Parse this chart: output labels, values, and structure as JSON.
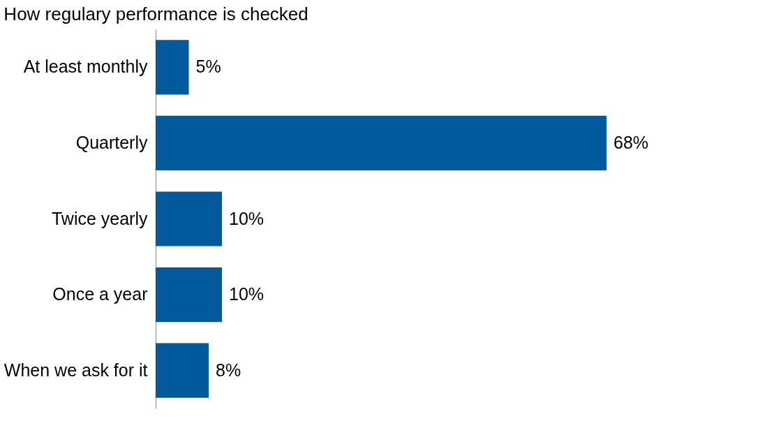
{
  "chart_data": {
    "type": "bar",
    "orientation": "horizontal",
    "title": "How regulary performance is checked",
    "categories": [
      "At least monthly",
      "Quarterly",
      "Twice yearly",
      "Once a year",
      "When we ask for it"
    ],
    "values": [
      5,
      68,
      10,
      10,
      8
    ],
    "value_labels": [
      "5%",
      "68%",
      "10%",
      "10%",
      "8%"
    ],
    "color": "#005a9c"
  }
}
